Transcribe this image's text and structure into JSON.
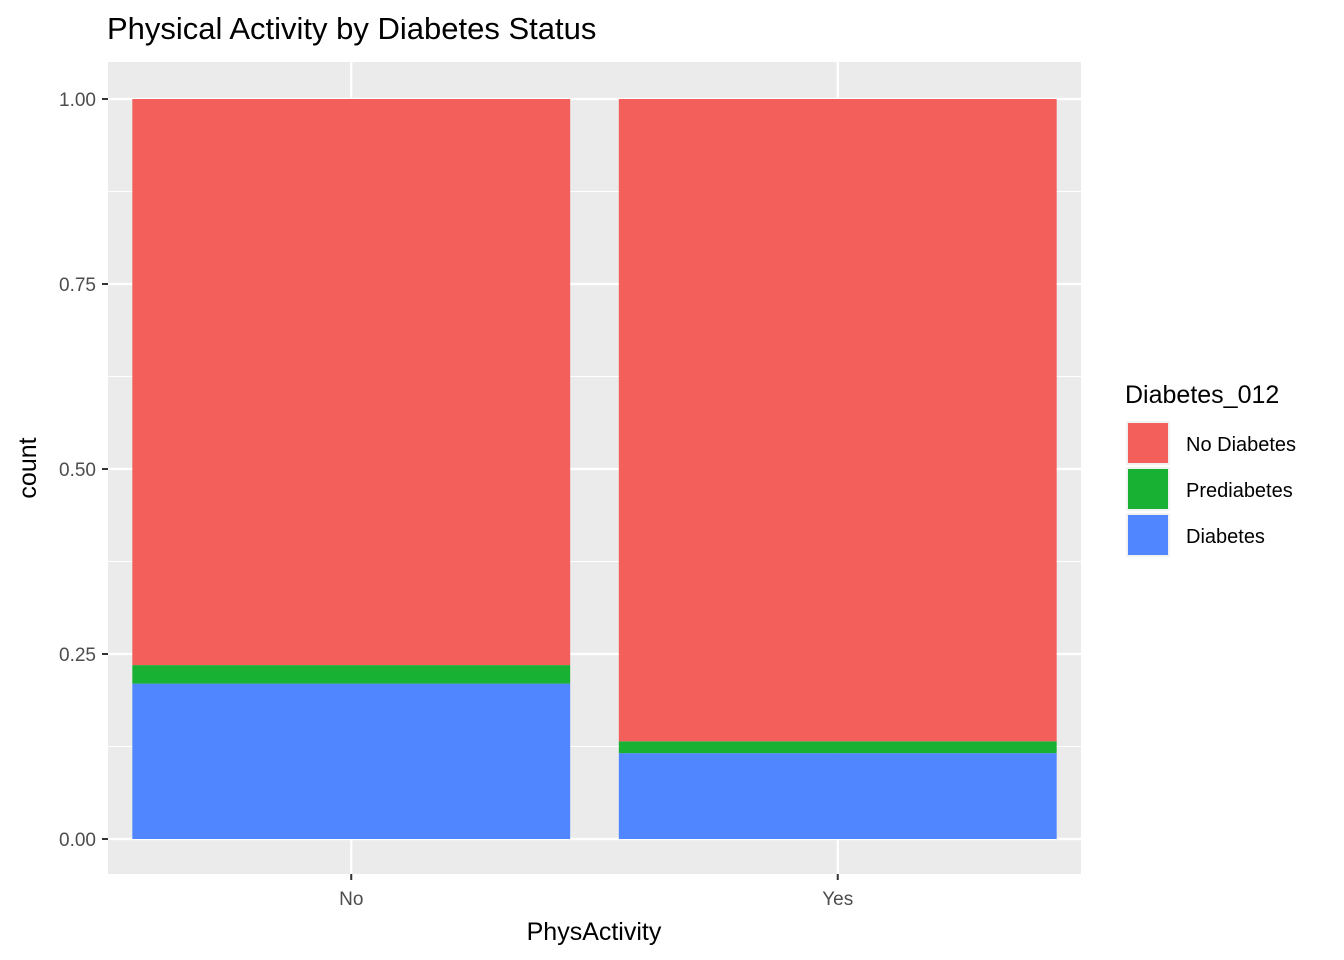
{
  "chart_data": {
    "type": "bar",
    "stacked": true,
    "title": "Physical Activity by Diabetes Status",
    "xlabel": "PhysActivity",
    "ylabel": "count",
    "categories": [
      "No",
      "Yes"
    ],
    "ylim": [
      0,
      1
    ],
    "y_ticks": [
      "0.00",
      "0.25",
      "0.50",
      "0.75",
      "1.00"
    ],
    "y_tick_values": [
      0,
      0.25,
      0.5,
      0.75,
      1.0
    ],
    "grid": true,
    "legend_title": "Diabetes_012",
    "legend_position": "right",
    "series": [
      {
        "name": "No Diabetes",
        "color": "#F35F5A",
        "values": [
          0.765,
          0.868
        ]
      },
      {
        "name": "Prediabetes",
        "color": "#18B134",
        "values": [
          0.025,
          0.016
        ]
      },
      {
        "name": "Diabetes",
        "color": "#5086FF",
        "values": [
          0.21,
          0.116
        ]
      }
    ]
  }
}
